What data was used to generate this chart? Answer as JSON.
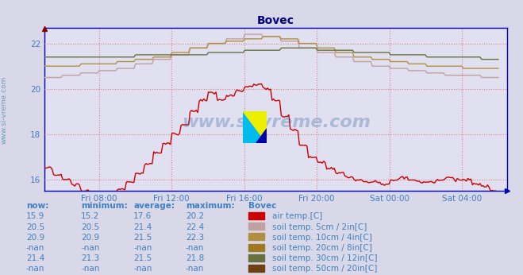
{
  "title": "Bovec",
  "title_color": "#000080",
  "bg_color": "#d8d8e8",
  "plot_bg_color": "#e0e0f0",
  "x_label_color": "#4080c0",
  "y_label_color": "#4080c0",
  "grid_color": "#e08080",
  "axis_color": "#0000bb",
  "ylim_min": 15.5,
  "ylim_max": 22.7,
  "yticks": [
    16,
    18,
    20,
    22
  ],
  "xtick_labels": [
    "Fri 08:00",
    "Fri 12:00",
    "Fri 16:00",
    "Fri 20:00",
    "Sat 00:00",
    "Sat 04:00"
  ],
  "xtick_positions": [
    8,
    12,
    16,
    20,
    24,
    28
  ],
  "xlim_min": 5.0,
  "xlim_max": 30.5,
  "watermark": "www.si-vreme.com",
  "watermark_color": "#3060a0",
  "left_label": "www.si-vreme.com",
  "series_colors": {
    "air_temp": "#cc0000",
    "soil_5cm": "#c0a0a0",
    "soil_10cm": "#b09040",
    "soil_20cm": "#a07820",
    "soil_30cm": "#687040",
    "soil_50cm": "#704010"
  },
  "table_color": "#4080c0",
  "table_header_color": "#4080c0",
  "table_rows": [
    [
      "now:",
      "minimum:",
      "average:",
      "maximum:",
      "Bovec"
    ],
    [
      "15.9",
      "15.2",
      "17.6",
      "20.2",
      "air temp.[C]"
    ],
    [
      "20.5",
      "20.5",
      "21.4",
      "22.4",
      "soil temp. 5cm / 2in[C]"
    ],
    [
      "20.9",
      "20.9",
      "21.5",
      "22.3",
      "soil temp. 10cm / 4in[C]"
    ],
    [
      "-nan",
      "-nan",
      "-nan",
      "-nan",
      "soil temp. 20cm / 8in[C]"
    ],
    [
      "21.4",
      "21.3",
      "21.5",
      "21.8",
      "soil temp. 30cm / 12in[C]"
    ],
    [
      "-nan",
      "-nan",
      "-nan",
      "-nan",
      "soil temp. 50cm / 20in[C]"
    ]
  ]
}
